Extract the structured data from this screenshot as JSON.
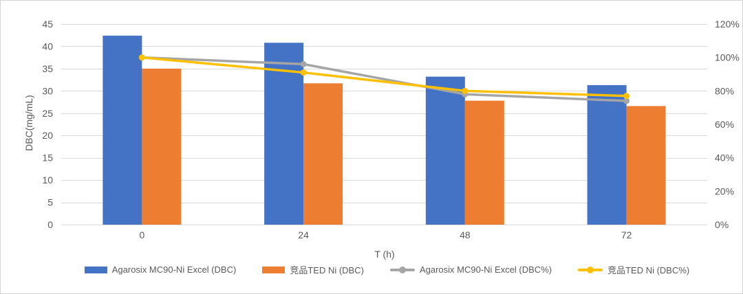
{
  "chart_data": {
    "type": "combo",
    "title": "",
    "categories": [
      "0",
      "24",
      "48",
      "72"
    ],
    "x_axis": {
      "label": "T (h)"
    },
    "y_left": {
      "label": "DBC(mg/mL)",
      "min": 0,
      "max": 45,
      "step": 5,
      "tick_labels": [
        "0",
        "5",
        "10",
        "15",
        "20",
        "25",
        "30",
        "35",
        "40",
        "45"
      ]
    },
    "y_right": {
      "label": "",
      "min": 0,
      "max": 1.2,
      "step": 0.2,
      "tick_labels": [
        "0%",
        "20%",
        "40%",
        "60%",
        "80%",
        "100%",
        "120%"
      ]
    },
    "grid": true,
    "legend_position": "bottom",
    "series": [
      {
        "name": "Agarosix MC90-Ni Excel (DBC)",
        "type": "bar",
        "axis": "left",
        "color": "#4472C4",
        "values": [
          42.4,
          40.8,
          33.2,
          31.3
        ]
      },
      {
        "name": "竞品TED Ni (DBC)",
        "type": "bar",
        "axis": "left",
        "color": "#ED7D31",
        "values": [
          35.0,
          31.7,
          27.8,
          26.6
        ]
      },
      {
        "name": "Agarosix MC90-Ni Excel (DBC%)",
        "type": "line",
        "axis": "right",
        "color": "#A5A5A5",
        "values": [
          1.0,
          0.96,
          0.78,
          0.74
        ]
      },
      {
        "name": "竞品TED Ni (DBC%)",
        "type": "line",
        "axis": "right",
        "color": "#FFC000",
        "values": [
          1.0,
          0.91,
          0.8,
          0.77
        ]
      }
    ],
    "colors": {
      "gridline": "#D9D9D9",
      "text": "#595959",
      "border": "#D3D3D3",
      "background": "#FFFFFF"
    }
  }
}
